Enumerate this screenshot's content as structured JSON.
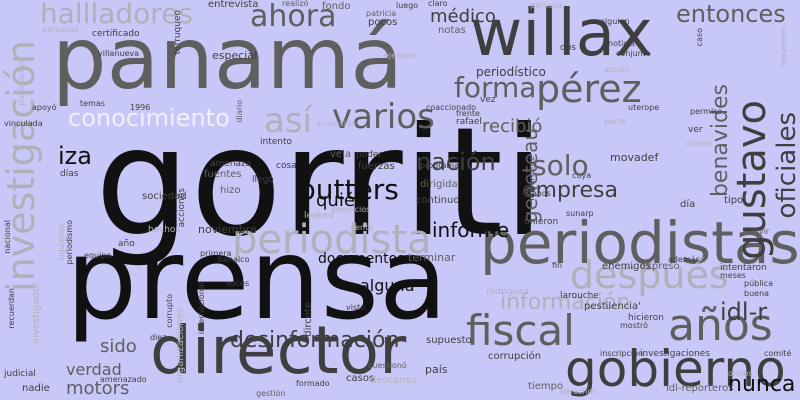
{
  "words": [
    "gorriti",
    "prensa",
    "panamá",
    "director",
    "willax",
    "periodistas",
    "gobierno",
    "investigación",
    "periodista",
    "años",
    "fiscal",
    "después",
    "gustavo",
    "pérez",
    "desinformación",
    "butters",
    "así",
    "ahora",
    "conocimiento",
    "varios",
    "forma",
    "oficiales",
    "benavides",
    "geneteau",
    "nación",
    "empresa",
    "idl-r",
    "entonces",
    "información",
    "hallladores",
    "solo",
    "nunca",
    "informe",
    "quién",
    "iza",
    "recibió",
    "documentos",
    "verdad",
    "sido",
    "motors",
    "alguna",
    "médico",
    "periodístico",
    "país",
    "casos",
    "noviembre",
    "entrevista",
    "fondo",
    "notas",
    "pocos",
    "certificado",
    "especial",
    "sociedad",
    "fuerzas",
    "fuentes",
    "poder",
    "hizo",
    "llegó",
    "vela",
    "amenaza",
    "intento",
    "cosa",
    "leaked",
    "programa",
    "dirigida",
    "continuo",
    "terminar",
    "dircote",
    "visto",
    "supuesto",
    "cuestionó",
    "descanso",
    "gestión",
    "formado",
    "amenazado",
    "judicial",
    "nadie",
    "corrupción",
    "enemigos",
    "expreso",
    "intentaron",
    "pública",
    "buena",
    "meses",
    "comité",
    "investigaciones",
    "idl-reporteros",
    "tiempo",
    "inscripción",
    "hicieron",
    "larouche",
    "pestilencia'",
    "fin",
    "rodríguez",
    "importante",
    "unieron",
    "menos",
    "movadef",
    "día",
    "tipo",
    "cuya",
    "sunarp",
    "además",
    "vivir",
    "ver",
    "permiso",
    "uterope",
    "parte",
    "vez",
    "rafael",
    "coaccionado",
    "frente",
    "luego",
    "claro",
    "patricia",
    "realizó",
    "alguien",
    "noticia",
    "conjunto",
    "dos",
    "caso",
    "requesens",
    "villanueva",
    "terruqueo",
    "diario",
    "temas",
    "1996",
    "apoyó",
    "vinculada",
    "días",
    "año",
    "equipo",
    "primera",
    "banaico",
    "voces",
    "acciones",
    "hechos",
    "gente",
    "prejuicios",
    "organizaciones",
    "internacional",
    "corrupto",
    "diez",
    "mostró",
    "acción",
    "orinos",
    "publicación",
    "personas",
    "nacional",
    "recuerdan",
    "siguiente",
    "periodismo",
    "investigador",
    "derechos",
    "dinero",
    "acusación",
    "ejemplo",
    "persona",
    "proyecto"
  ],
  "colors": {
    "background": "#c8c8f8",
    "darkest": "#111111",
    "dark": "#3f3f3f",
    "mid": "#5f5f5f",
    "light": "#8a8a8a",
    "pale": "#b0b0b8",
    "white": "#f0f0f8"
  }
}
